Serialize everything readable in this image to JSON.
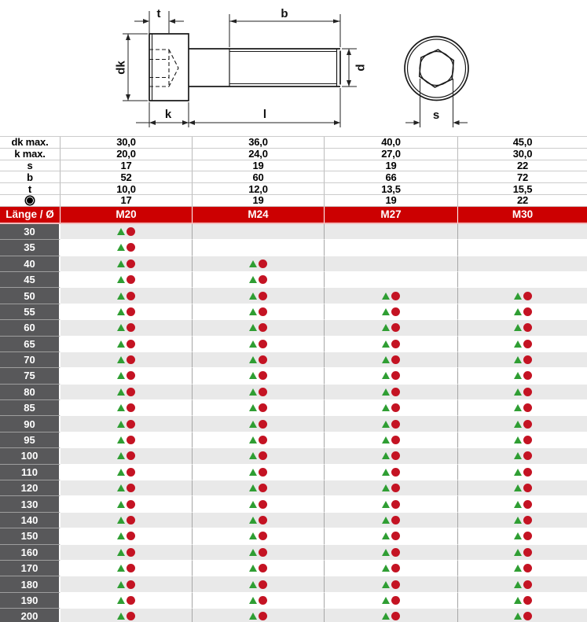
{
  "drawing": {
    "description": "socket head cap screw, side view and hex-socket end view",
    "labels": {
      "t": "t",
      "b": "b",
      "dk": "dk",
      "d": "d",
      "k": "k",
      "l": "l",
      "s": "s"
    }
  },
  "spec_table": {
    "rows": [
      {
        "label": "dk max.",
        "values": [
          "30,0",
          "36,0",
          "40,0",
          "45,0"
        ]
      },
      {
        "label": "k max.",
        "values": [
          "20,0",
          "24,0",
          "27,0",
          "30,0"
        ]
      },
      {
        "label": "s",
        "values": [
          "17",
          "19",
          "19",
          "22"
        ]
      },
      {
        "label": "b",
        "values": [
          "52",
          "60",
          "66",
          "72"
        ]
      },
      {
        "label": "t",
        "values": [
          "10,0",
          "12,0",
          "13,5",
          "15,5"
        ]
      },
      {
        "label": "",
        "icon": "ring-dot-icon",
        "values": [
          "17",
          "19",
          "19",
          "22"
        ]
      }
    ]
  },
  "main_table": {
    "header": {
      "label": "Länge / Ø",
      "columns": [
        "M20",
        "M24",
        "M27",
        "M30"
      ]
    },
    "rows": [
      {
        "length": "30",
        "available": [
          1,
          0,
          0,
          0
        ]
      },
      {
        "length": "35",
        "available": [
          1,
          0,
          0,
          0
        ]
      },
      {
        "length": "40",
        "available": [
          1,
          1,
          0,
          0
        ]
      },
      {
        "length": "45",
        "available": [
          1,
          1,
          0,
          0
        ]
      },
      {
        "length": "50",
        "available": [
          1,
          1,
          1,
          1
        ]
      },
      {
        "length": "55",
        "available": [
          1,
          1,
          1,
          1
        ]
      },
      {
        "length": "60",
        "available": [
          1,
          1,
          1,
          1
        ]
      },
      {
        "length": "65",
        "available": [
          1,
          1,
          1,
          1
        ]
      },
      {
        "length": "70",
        "available": [
          1,
          1,
          1,
          1
        ]
      },
      {
        "length": "75",
        "available": [
          1,
          1,
          1,
          1
        ]
      },
      {
        "length": "80",
        "available": [
          1,
          1,
          1,
          1
        ]
      },
      {
        "length": "85",
        "available": [
          1,
          1,
          1,
          1
        ]
      },
      {
        "length": "90",
        "available": [
          1,
          1,
          1,
          1
        ]
      },
      {
        "length": "95",
        "available": [
          1,
          1,
          1,
          1
        ]
      },
      {
        "length": "100",
        "available": [
          1,
          1,
          1,
          1
        ]
      },
      {
        "length": "110",
        "available": [
          1,
          1,
          1,
          1
        ]
      },
      {
        "length": "120",
        "available": [
          1,
          1,
          1,
          1
        ]
      },
      {
        "length": "130",
        "available": [
          1,
          1,
          1,
          1
        ]
      },
      {
        "length": "140",
        "available": [
          1,
          1,
          1,
          1
        ]
      },
      {
        "length": "150",
        "available": [
          1,
          1,
          1,
          1
        ]
      },
      {
        "length": "160",
        "available": [
          1,
          1,
          1,
          1
        ]
      },
      {
        "length": "170",
        "available": [
          1,
          1,
          1,
          1
        ]
      },
      {
        "length": "180",
        "available": [
          1,
          1,
          1,
          1
        ]
      },
      {
        "length": "190",
        "available": [
          1,
          1,
          1,
          1
        ]
      },
      {
        "length": "200",
        "available": [
          1,
          1,
          1,
          1
        ]
      }
    ]
  },
  "colors": {
    "header_red": "#cc0001",
    "header_divider_pink": "#f3b9ba",
    "length_cell_gray": "#58585a",
    "row_alt_gray": "#e9e9e9",
    "marker_green": "#2f9e33",
    "marker_red": "#c41323"
  }
}
